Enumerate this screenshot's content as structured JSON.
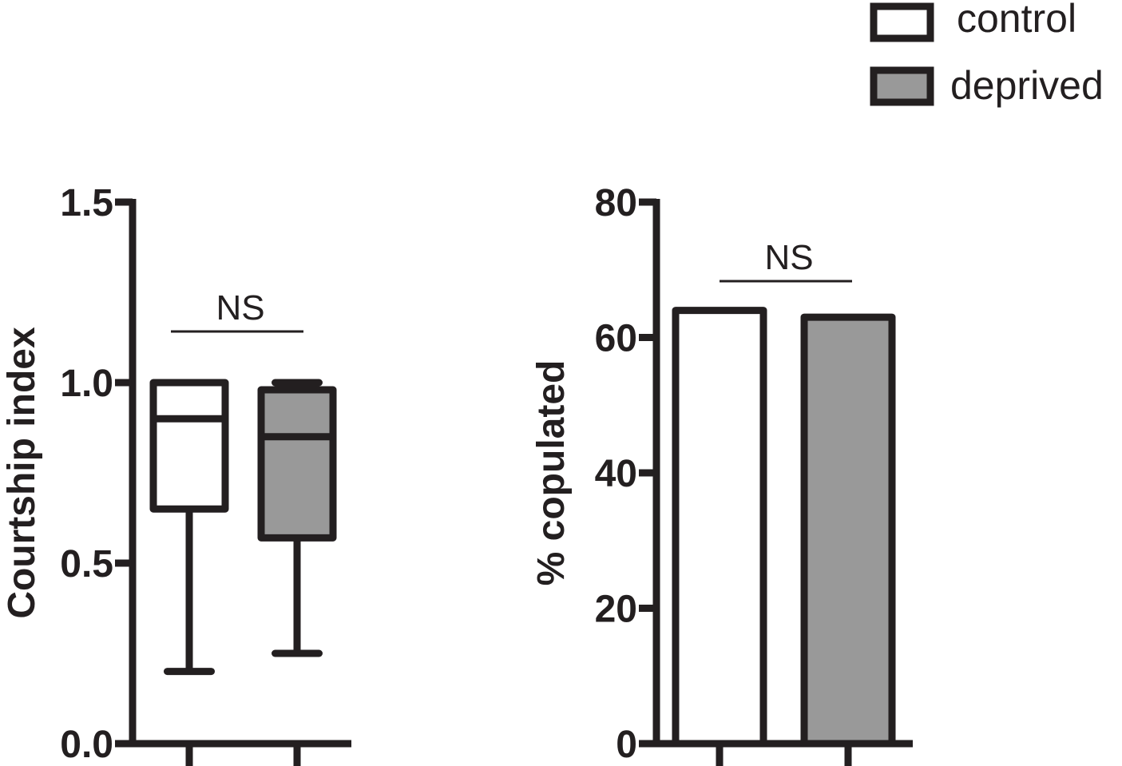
{
  "colors": {
    "stroke": "#231f20",
    "control_fill": "#ffffff",
    "deprived_fill": "#999999",
    "background": "#ffffff"
  },
  "legend": {
    "position": "top-right",
    "items": [
      {
        "label": "control",
        "fill": "#ffffff"
      },
      {
        "label": "deprived",
        "fill": "#999999"
      }
    ]
  },
  "chart_data": [
    {
      "type": "box",
      "ylabel": "Courtship index",
      "xlabel": "",
      "ylim": [
        0,
        1.5
      ],
      "yticks": [
        "0.0",
        "0.5",
        "1.0",
        "1.5"
      ],
      "grid": false,
      "groups": [
        {
          "name": "control",
          "whisker_low": 0.2,
          "q1": 0.65,
          "median": 0.9,
          "q3": 1.0,
          "whisker_high": 1.0
        },
        {
          "name": "deprived",
          "whisker_low": 0.25,
          "q1": 0.57,
          "median": 0.85,
          "q3": 0.98,
          "whisker_high": 1.0
        }
      ],
      "annotation": "NS"
    },
    {
      "type": "bar",
      "ylabel": "% copulated",
      "xlabel": "",
      "ylim": [
        0,
        80
      ],
      "yticks": [
        "0",
        "20",
        "40",
        "60",
        "80"
      ],
      "grid": false,
      "categories": [
        "control",
        "deprived"
      ],
      "values": [
        64,
        63
      ],
      "annotation": "NS"
    }
  ]
}
